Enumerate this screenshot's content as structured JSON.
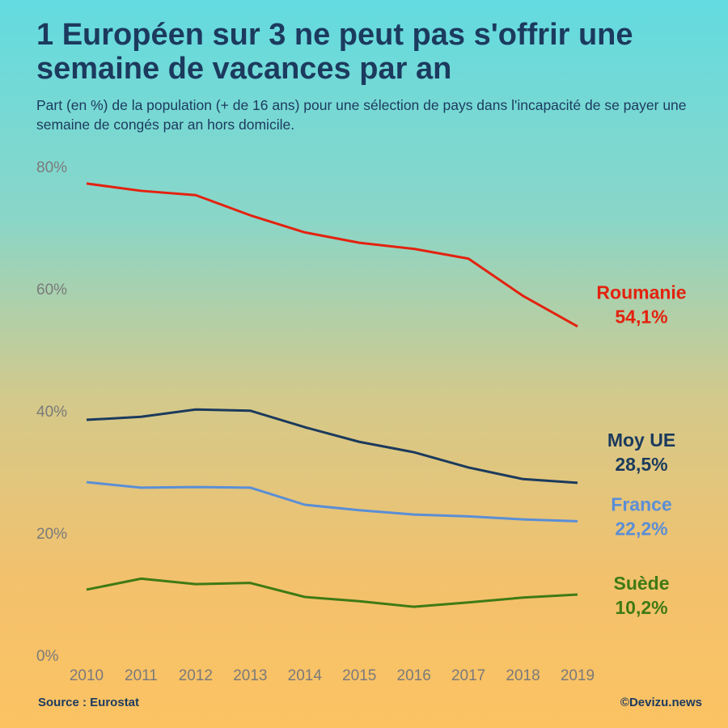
{
  "chart_data": {
    "type": "line",
    "title": "1 Européen sur 3 ne peut pas s'offrir une semaine de vacances par an",
    "subtitle": "Part (en %) de la population (+ de 16 ans) pour une sélection de pays dans l'incapacité de se payer une semaine de congés par an hors domicile.",
    "source": "Source : Eurostat",
    "credit": "©Devizu.news",
    "x": [
      2010,
      2011,
      2012,
      2013,
      2014,
      2015,
      2016,
      2017,
      2018,
      2019
    ],
    "xlim": [
      2010,
      2019
    ],
    "ylim": [
      0,
      80
    ],
    "yticks": [
      {
        "value": 0,
        "label": "0%"
      },
      {
        "value": 20,
        "label": "20%"
      },
      {
        "value": 40,
        "label": "40%"
      },
      {
        "value": 60,
        "label": "60%"
      },
      {
        "value": 80,
        "label": "80%"
      }
    ],
    "grid": false,
    "series": [
      {
        "name": "Roumanie",
        "color": "#e3220f",
        "values": [
          77.5,
          76.3,
          75.6,
          72.3,
          69.5,
          67.8,
          66.8,
          65.2,
          59.1,
          54.1
        ],
        "value_labels": [
          null,
          null,
          null,
          null,
          null,
          null,
          null,
          null,
          null,
          "54,1%"
        ]
      },
      {
        "name": "Moy UE",
        "color": "#1b3a5c",
        "values": [
          38.8,
          39.3,
          40.5,
          40.3,
          37.6,
          35.2,
          33.5,
          31.0,
          29.1,
          28.5
        ],
        "value_labels": [
          null,
          null,
          null,
          null,
          null,
          null,
          null,
          null,
          null,
          "28,5%"
        ]
      },
      {
        "name": "France",
        "color": "#5b8ed6",
        "values": [
          28.6,
          27.7,
          27.8,
          27.7,
          24.9,
          24.0,
          23.3,
          23.0,
          22.5,
          22.2
        ],
        "value_labels": [
          null,
          null,
          null,
          null,
          null,
          null,
          null,
          null,
          null,
          "22,2%"
        ]
      },
      {
        "name": "Suède",
        "color": "#3f7a14",
        "values": [
          11.0,
          12.8,
          11.9,
          12.1,
          9.8,
          9.1,
          8.2,
          8.9,
          9.7,
          10.2
        ],
        "value_labels": [
          null,
          null,
          null,
          null,
          null,
          null,
          null,
          null,
          null,
          "10,2%"
        ]
      }
    ]
  }
}
